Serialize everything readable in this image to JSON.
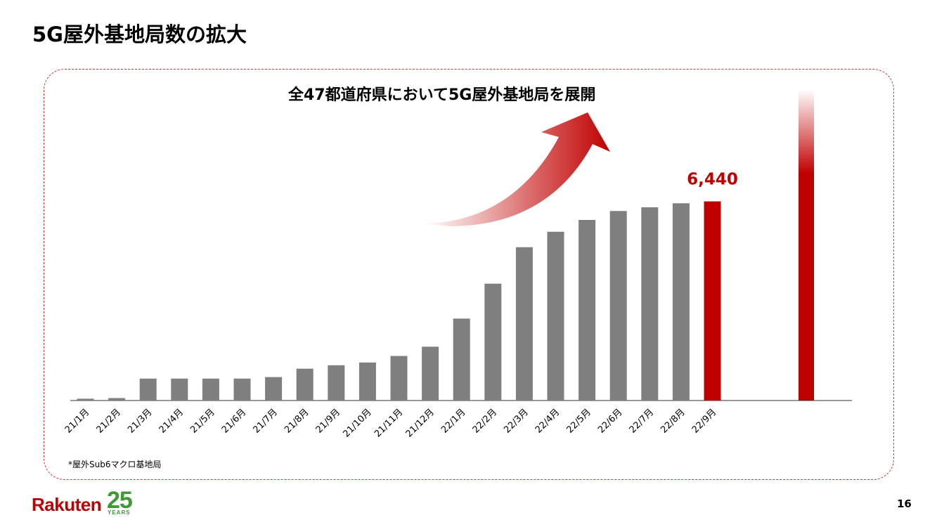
{
  "page_title": "5G屋外基地局数の拡大",
  "chart_data": {
    "type": "bar",
    "title": "全47都道府県において5G屋外基地局を展開",
    "categories": [
      "21/1月",
      "21/2月",
      "21/3月",
      "21/4月",
      "21/5月",
      "21/6月",
      "21/7月",
      "21/8月",
      "21/9月",
      "21/10月",
      "21/11月",
      "21/12月",
      "22/1月",
      "22/2月",
      "22/3月",
      "22/4月",
      "22/5月",
      "22/6月",
      "22/7月",
      "22/8月",
      "22/9月"
    ],
    "values": [
      60,
      80,
      710,
      710,
      710,
      710,
      760,
      1030,
      1140,
      1230,
      1440,
      1740,
      2650,
      3780,
      4960,
      5460,
      5840,
      6130,
      6250,
      6380,
      6440
    ],
    "highlight_index": 20,
    "highlight_label": "6,440",
    "xlabel": "",
    "ylabel": "",
    "ylim": [
      0,
      10000
    ],
    "colors": {
      "bar": "#7f7f7f",
      "highlight": "#c00000",
      "arrow": "#c00000"
    }
  },
  "footnote": "*屋外Sub6マクロ基地局",
  "logo": {
    "wordmark": "Rakuten",
    "number": "25",
    "years": "YEARS"
  },
  "page_number": "16"
}
